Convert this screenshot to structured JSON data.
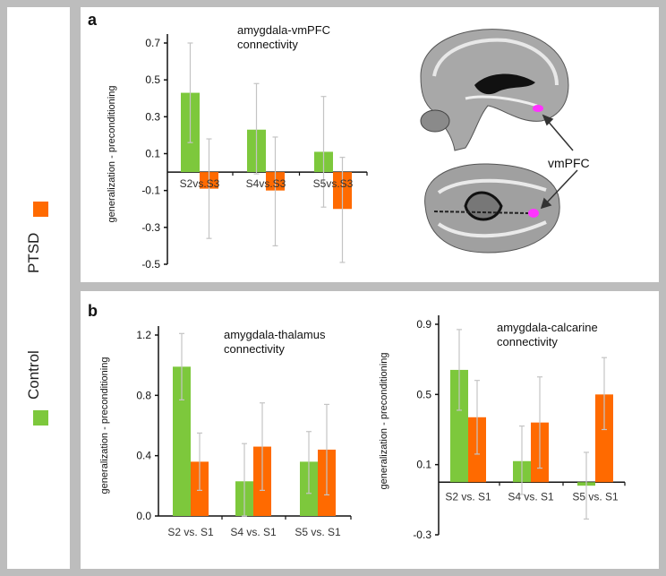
{
  "legend": {
    "items": [
      {
        "label": "PTSD",
        "color": "#ff6a00"
      },
      {
        "label": "Control",
        "color": "#7dc83c"
      }
    ]
  },
  "panels": {
    "a": "a",
    "b": "b"
  },
  "brain": {
    "label": "vmPFC",
    "highlight_color": "#ff33ff"
  },
  "chart_data": [
    {
      "type": "bar",
      "panel": "a",
      "title": [
        "amygdala-vmPFC",
        "connectivity"
      ],
      "ylabel": "generalization - preconditioning",
      "categories": [
        "S2vs.S3",
        "S4vs.S3",
        "S5vs.S3"
      ],
      "ylim": [
        -0.5,
        0.7
      ],
      "yticks": [
        "0.7",
        "0.5",
        "0.3",
        "0.1",
        "-0.1",
        "-0.3",
        "-0.5"
      ],
      "series": [
        {
          "name": "Control",
          "color": "#7dc83c",
          "values": [
            0.43,
            0.23,
            0.11
          ],
          "err_upper": [
            0.7,
            0.48,
            0.41
          ],
          "err_lower": [
            0.16,
            -0.01,
            -0.19
          ]
        },
        {
          "name": "PTSD",
          "color": "#ff6a00",
          "values": [
            -0.09,
            -0.1,
            -0.2
          ],
          "err_upper": [
            0.18,
            0.19,
            0.08
          ],
          "err_lower": [
            -0.36,
            -0.4,
            -0.49
          ]
        }
      ]
    },
    {
      "type": "bar",
      "panel": "b",
      "title": [
        "amygdala-thalamus",
        "connectivity"
      ],
      "ylabel": "generalization - preconditioning",
      "categories": [
        "S2 vs. S1",
        "S4 vs. S1",
        "S5 vs. S1"
      ],
      "ylim": [
        0.0,
        1.2
      ],
      "yticks": [
        "1.2",
        "0.8",
        "0.4",
        "0.0"
      ],
      "series": [
        {
          "name": "Control",
          "color": "#7dc83c",
          "values": [
            0.99,
            0.23,
            0.36
          ],
          "err_upper": [
            1.21,
            0.48,
            0.56
          ],
          "err_lower": [
            0.77,
            0.0,
            0.15
          ]
        },
        {
          "name": "PTSD",
          "color": "#ff6a00",
          "values": [
            0.36,
            0.46,
            0.44
          ],
          "err_upper": [
            0.55,
            0.75,
            0.74
          ],
          "err_lower": [
            0.17,
            0.17,
            0.14
          ]
        }
      ]
    },
    {
      "type": "bar",
      "panel": "b",
      "title": [
        "amygdala-calcarine",
        "connectivity"
      ],
      "ylabel": "generalization - preconditioning",
      "categories": [
        "S2 vs. S1",
        "S4 vs. S1",
        "S5 vs. S1"
      ],
      "ylim": [
        -0.3,
        0.9
      ],
      "yticks": [
        "0.9",
        "0.5",
        "0.1",
        "-0.3"
      ],
      "series": [
        {
          "name": "Control",
          "color": "#7dc83c",
          "values": [
            0.64,
            0.12,
            -0.02
          ],
          "err_upper": [
            0.87,
            0.32,
            0.17
          ],
          "err_lower": [
            0.41,
            -0.07,
            -0.21
          ]
        },
        {
          "name": "PTSD",
          "color": "#ff6a00",
          "values": [
            0.37,
            0.34,
            0.5
          ],
          "err_upper": [
            0.58,
            0.6,
            0.71
          ],
          "err_lower": [
            0.16,
            0.08,
            0.3
          ]
        }
      ]
    }
  ]
}
